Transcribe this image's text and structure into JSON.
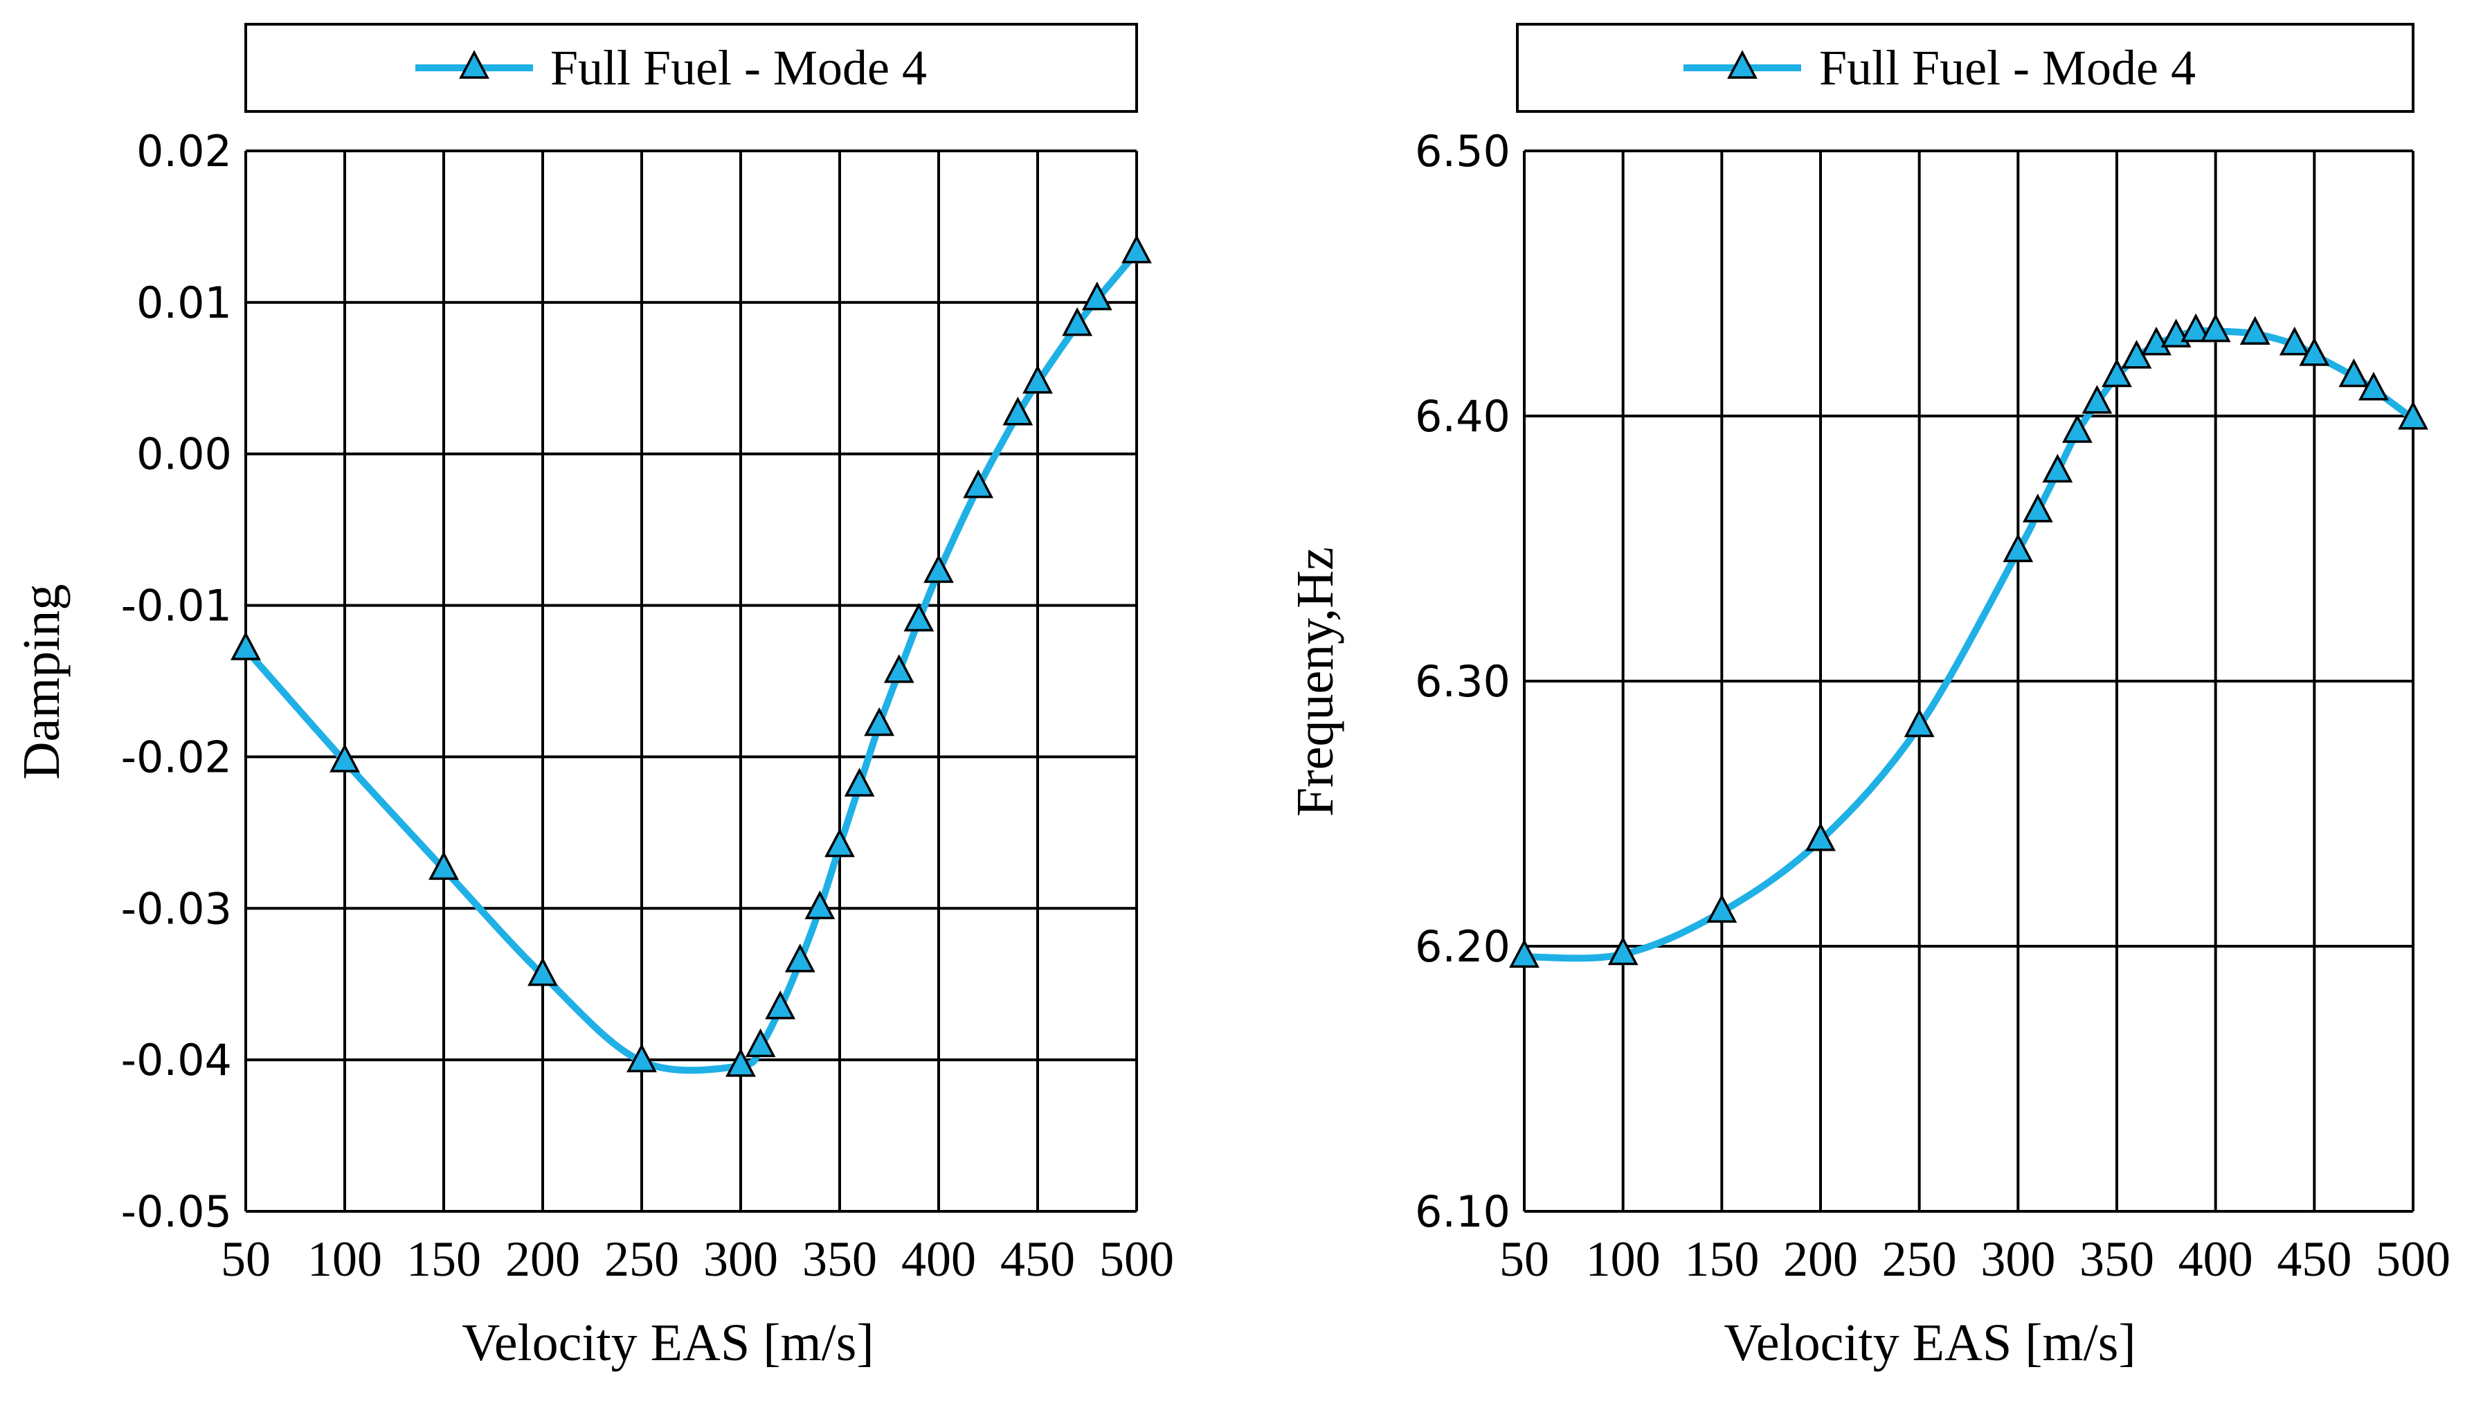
{
  "chart_data": [
    {
      "type": "line",
      "legend": "Full Fuel - Mode 4",
      "xlabel": "Velocity EAS  [m/s]",
      "ylabel": "Damping",
      "xlim": [
        50,
        500
      ],
      "ylim": [
        -0.05,
        0.02
      ],
      "x_ticks": [
        "50",
        "100",
        "150",
        "200",
        "250",
        "300",
        "350",
        "400",
        "450",
        "500"
      ],
      "y_ticks": [
        "0.02",
        "0.01",
        "0.00",
        "-0.01",
        "-0.02",
        "-0.03",
        "-0.04",
        "-0.05"
      ],
      "series": [
        {
          "name": "Full Fuel - Mode 4",
          "color": "#1fb0e6",
          "x": [
            50,
            100,
            150,
            200,
            250,
            300,
            310,
            320,
            330,
            340,
            350,
            360,
            370,
            380,
            390,
            400,
            420,
            440,
            450,
            470,
            480,
            500
          ],
          "y": [
            -0.0129,
            -0.0203,
            -0.0274,
            -0.0344,
            -0.0401,
            -0.0404,
            -0.0391,
            -0.0366,
            -0.0335,
            -0.03,
            -0.0259,
            -0.0219,
            -0.0179,
            -0.0144,
            -0.011,
            -0.0078,
            -0.0022,
            0.0026,
            0.0047,
            0.0085,
            0.0102,
            0.0133
          ]
        }
      ]
    },
    {
      "type": "line",
      "legend": "Full Fuel - Mode 4",
      "xlabel": "Velocity EAS  [m/s]",
      "ylabel": "Frequeny,Hz",
      "xlim": [
        50,
        500
      ],
      "ylim": [
        6.1,
        6.5
      ],
      "x_ticks": [
        "50",
        "100",
        "150",
        "200",
        "250",
        "300",
        "350",
        "400",
        "450",
        "500"
      ],
      "y_ticks": [
        "6.50",
        "6.40",
        "6.30",
        "6.20",
        "6.10"
      ],
      "series": [
        {
          "name": "Full Fuel - Mode 4",
          "color": "#1fb0e6",
          "x": [
            50,
            100,
            150,
            200,
            250,
            300,
            310,
            320,
            330,
            340,
            350,
            360,
            370,
            380,
            390,
            400,
            420,
            440,
            450,
            470,
            480,
            500
          ],
          "y": [
            6.196,
            6.197,
            6.213,
            6.24,
            6.283,
            6.349,
            6.364,
            6.379,
            6.394,
            6.405,
            6.415,
            6.422,
            6.427,
            6.43,
            6.432,
            6.432,
            6.431,
            6.427,
            6.423,
            6.415,
            6.41,
            6.399
          ]
        }
      ]
    }
  ]
}
